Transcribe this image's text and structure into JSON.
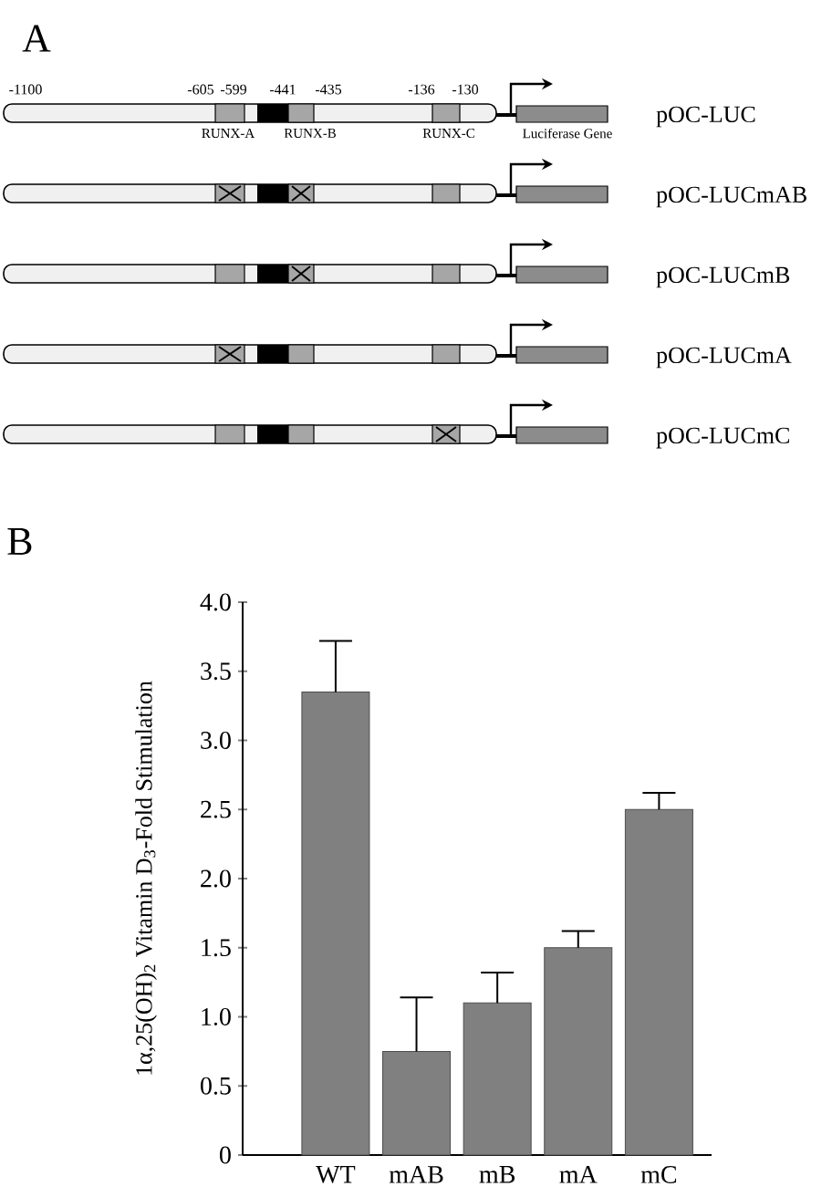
{
  "chart_data": [
    {
      "type": "other",
      "title": "A",
      "categories": [
        "pOC-LUC",
        "pOC-LUCmAB",
        "pOC-LUCmB",
        "pOC-LUCmA",
        "pOC-LUCmC"
      ],
      "annotations": [
        "-1100",
        "-605",
        "-599",
        "-441",
        "-435",
        "-136",
        "-130",
        "RUNX-A",
        "RUNX-B",
        "RUNX-C",
        "Luciferase Gene"
      ]
    },
    {
      "type": "bar",
      "title": "B",
      "ylabel": "1α,25(OH)$_{2}$ Vitamin D$_{3}$-Fold Stimulation",
      "categories": [
        "WT",
        "mAB",
        "mB",
        "mA",
        "mC"
      ],
      "values": [
        3.35,
        0.75,
        1.1,
        1.5,
        2.5
      ],
      "errors": [
        [
          3.35,
          3.72
        ],
        [
          0.75,
          1.14
        ],
        [
          1.1,
          1.32
        ],
        [
          1.5,
          1.62
        ],
        [
          2.5,
          2.62
        ]
      ],
      "color": "#808080",
      "ylim": [
        0,
        4
      ],
      "yticks": [
        0,
        0.5,
        {
          "value": 1,
          "label": "1.0"
        },
        1.5,
        {
          "value": 2,
          "label": "2.0"
        },
        2.5,
        {
          "value": 3,
          "label": "3.0"
        },
        3.5,
        {
          "value": 4,
          "label": "4.0"
        }
      ]
    }
  ]
}
